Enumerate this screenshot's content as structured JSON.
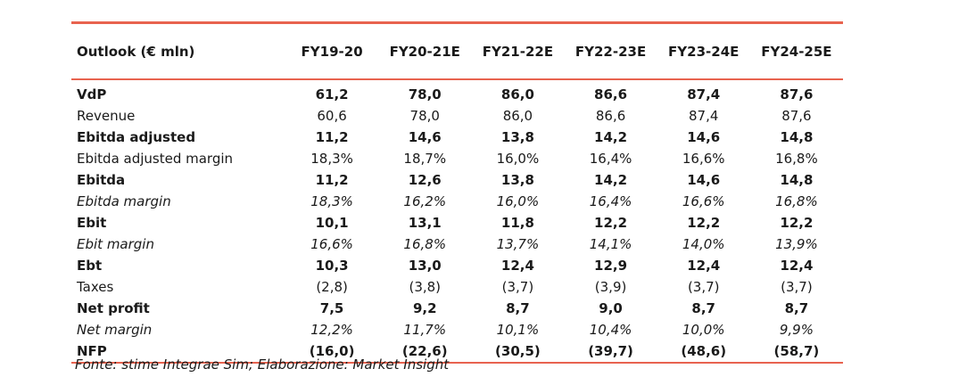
{
  "header": {
    "label": "Outlook (€ mln)",
    "years": [
      "FY19-20",
      "FY20-21E",
      "FY21-22E",
      "FY22-23E",
      "FY23-24E",
      "FY24-25E"
    ]
  },
  "rows": [
    {
      "label": "VdP",
      "style": "bold",
      "values": [
        "61,2",
        "78,0",
        "86,0",
        "86,6",
        "87,4",
        "87,6"
      ]
    },
    {
      "label": "Revenue",
      "style": "normal",
      "values": [
        "60,6",
        "78,0",
        "86,0",
        "86,6",
        "87,4",
        "87,6"
      ]
    },
    {
      "label": "Ebitda adjusted",
      "style": "bold",
      "values": [
        "11,2",
        "14,6",
        "13,8",
        "14,2",
        "14,6",
        "14,8"
      ]
    },
    {
      "label": "Ebitda adjusted margin",
      "style": "normal",
      "values": [
        "18,3%",
        "18,7%",
        "16,0%",
        "16,4%",
        "16,6%",
        "16,8%"
      ]
    },
    {
      "label": "Ebitda",
      "style": "bold",
      "values": [
        "11,2",
        "12,6",
        "13,8",
        "14,2",
        "14,6",
        "14,8"
      ]
    },
    {
      "label": "Ebitda margin",
      "style": "italic",
      "values": [
        "18,3%",
        "16,2%",
        "16,0%",
        "16,4%",
        "16,6%",
        "16,8%"
      ]
    },
    {
      "label": "Ebit",
      "style": "bold",
      "values": [
        "10,1",
        "13,1",
        "11,8",
        "12,2",
        "12,2",
        "12,2"
      ]
    },
    {
      "label": "Ebit margin",
      "style": "italic",
      "values": [
        "16,6%",
        "16,8%",
        "13,7%",
        "14,1%",
        "14,0%",
        "13,9%"
      ]
    },
    {
      "label": "Ebt",
      "style": "bold",
      "values": [
        "10,3",
        "13,0",
        "12,4",
        "12,9",
        "12,4",
        "12,4"
      ]
    },
    {
      "label": "Taxes",
      "style": "normal",
      "values": [
        "(2,8)",
        "(3,8)",
        "(3,7)",
        "(3,9)",
        "(3,7)",
        "(3,7)"
      ]
    },
    {
      "label": "Net profit",
      "style": "bold",
      "values": [
        "7,5",
        "9,2",
        "8,7",
        "9,0",
        "8,7",
        "8,7"
      ]
    },
    {
      "label": "Net margin",
      "style": "italic",
      "values": [
        "12,2%",
        "11,7%",
        "10,1%",
        "10,4%",
        "10,0%",
        "9,9%"
      ]
    },
    {
      "label": "NFP",
      "style": "bold",
      "values": [
        "(16,0)",
        "(22,6)",
        "(30,5)",
        "(39,7)",
        "(48,6)",
        "(58,7)"
      ]
    }
  ],
  "source": "Fonte: stime Integrae Sim; Elaborazione: Market Insight",
  "colors": {
    "rule": "#e8634f",
    "text": "#1a1a1a"
  }
}
